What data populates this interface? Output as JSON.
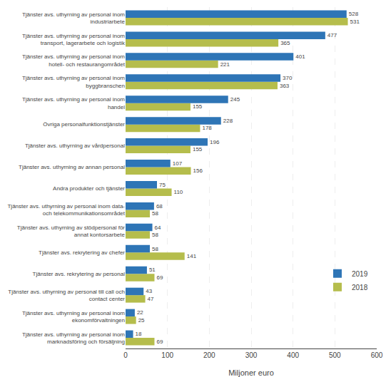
{
  "chart_data": {
    "type": "bar",
    "orientation": "horizontal",
    "categories": [
      "Tjänster avs. uthyrning av personal inom\nmarknadsföring och försäljning",
      "Tjänster avs. uthyrning av personal inom\nekonomförvaltningen",
      "Tjänster avs. uthyrning av personal till call och\ncontact center",
      "Tjänster avs. rekrytering av personal",
      "Tjänster avs. rekrytering av chefer",
      "Tjänster avs. uthyrning av stödpersonal för\nannat kontorsarbete",
      "Tjänster avs. uthyrning av personal inom data-\noch telekommunikationsområdet",
      "Andra produkter och tjänster",
      "Tjänster avs. uthyrning av annan personal",
      "Tjänster avs. uthyrning av vårdpersonal",
      "Övriga personalfunktionstjänster",
      "Tjänster avs. uthyrning av personal inom\nhandel",
      "Tjänster avs. uthyrning av personal inom\nbyggbranschen",
      "Tjänster avs. uthyrning av personal inom\nhotell- och restaurangområdet",
      "Tjänster avs. uthyrning av personal inom\ntransport, lagerarbete och logistik",
      "Tjänster avs. uthyrning av personal inom\nindustriarbete"
    ],
    "series": [
      {
        "name": "2019",
        "color": "#2e75b6",
        "values": [
          18,
          22,
          43,
          51,
          58,
          64,
          68,
          75,
          107,
          196,
          228,
          245,
          370,
          401,
          477,
          528
        ]
      },
      {
        "name": "2018",
        "color": "#b5bd4c",
        "values": [
          69,
          25,
          47,
          69,
          141,
          58,
          58,
          110,
          156,
          155,
          178,
          155,
          363,
          221,
          365,
          531
        ]
      }
    ],
    "xlabel": "Miljoner euro",
    "xlim": [
      0,
      600
    ],
    "xticks": [
      0,
      100,
      200,
      300,
      400,
      500,
      600
    ],
    "grid": true,
    "legend": "lower right",
    "data_labels": true
  }
}
